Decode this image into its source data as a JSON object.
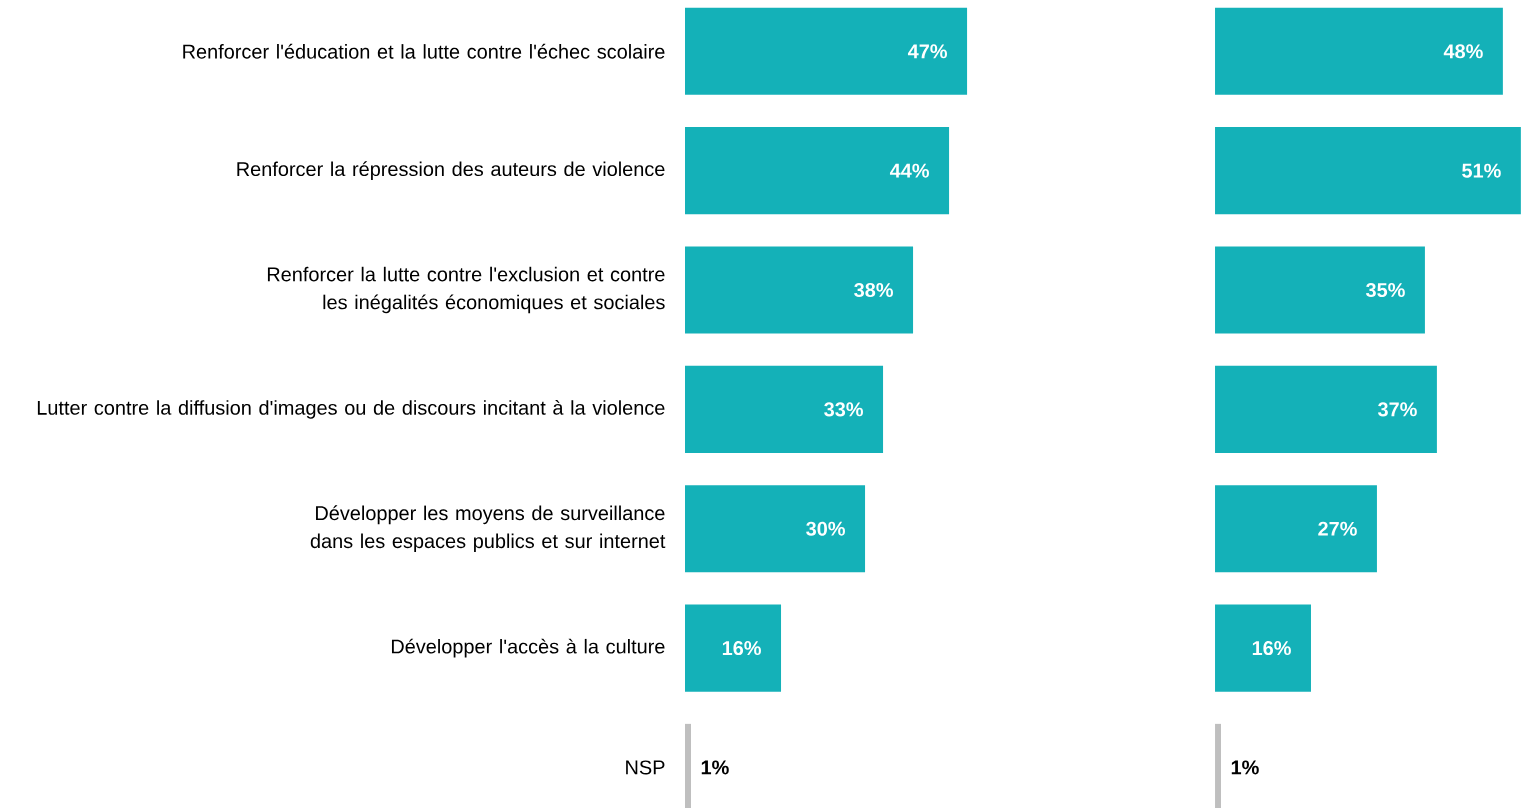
{
  "chart_data": [
    {
      "type": "bar",
      "orientation": "horizontal",
      "tick_labels": "y",
      "categories": [
        "Renforcer l'éducation et la lutte contre l'échec scolaire",
        "Renforcer la répression des auteurs de violence",
        "Renforcer la lutte contre l'exclusion et contre les inégalités économiques et sociales",
        "Lutter contre la diffusion d'images ou de discours incitant à la violence",
        "Développer les moyens de surveillance dans les espaces publics et sur internet",
        "Développer l'accès à la culture",
        "NSP"
      ],
      "values": [
        47,
        44,
        38,
        33,
        30,
        16,
        1
      ],
      "value_labels": [
        "47%",
        "44%",
        "38%",
        "33%",
        "30%",
        "16%",
        "1%"
      ],
      "colors": [
        "#14b1b8",
        "#14b1b8",
        "#14b1b8",
        "#14b1b8",
        "#14b1b8",
        "#14b1b8",
        "#bfbfbf"
      ]
    },
    {
      "type": "bar",
      "orientation": "horizontal",
      "tick_labels": false,
      "categories": [
        null,
        null,
        null,
        null,
        null,
        null,
        null
      ],
      "values": [
        48,
        51,
        35,
        37,
        27,
        16,
        1
      ],
      "value_labels": [
        "48%",
        "51%",
        "35%",
        "37%",
        "27%",
        "16%",
        "1%"
      ],
      "colors": [
        "#14b1b8",
        "#14b1b8",
        "#14b1b8",
        "#14b1b8",
        "#14b1b8",
        "#14b1b8",
        "#bfbfbf"
      ]
    }
  ]
}
